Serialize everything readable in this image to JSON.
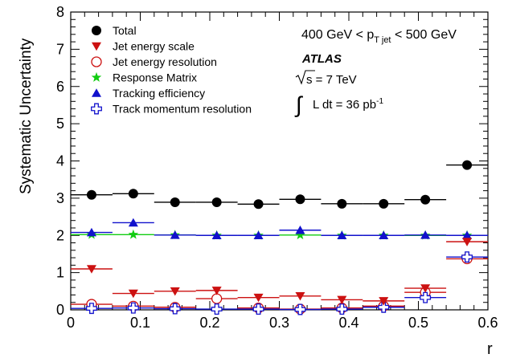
{
  "chart_data": {
    "type": "scatter",
    "xlabel": "r",
    "ylabel": "Systematic Uncertainty",
    "xlim": [
      0,
      0.6
    ],
    "ylim": [
      0,
      8
    ],
    "x_ticks": [
      "0",
      "0.1",
      "0.2",
      "0.3",
      "0.4",
      "0.5",
      "0.6"
    ],
    "y_ticks": [
      "0",
      "1",
      "2",
      "3",
      "4",
      "5",
      "6",
      "7",
      "8"
    ],
    "bin_edges": [
      0,
      0.06,
      0.12,
      0.18,
      0.24,
      0.3,
      0.36,
      0.42,
      0.48,
      0.54,
      0.6
    ],
    "x": [
      0.03,
      0.09,
      0.15,
      0.21,
      0.27,
      0.33,
      0.39,
      0.45,
      0.51,
      0.57
    ],
    "series": [
      {
        "name": "Total",
        "marker": "filled-circle",
        "color": "#000000",
        "values": [
          3.09,
          3.12,
          2.89,
          2.89,
          2.84,
          2.97,
          2.85,
          2.85,
          2.96,
          3.89
        ]
      },
      {
        "name": "Jet energy scale",
        "marker": "filled-triangle-down",
        "color": "#cc1111",
        "values": [
          1.1,
          0.44,
          0.5,
          0.52,
          0.33,
          0.37,
          0.27,
          0.24,
          0.58,
          1.83
        ]
      },
      {
        "name": "Jet energy resolution",
        "marker": "open-circle",
        "color": "#cc1111",
        "values": [
          0.15,
          0.1,
          0.07,
          0.3,
          0.05,
          0.02,
          0.05,
          0.1,
          0.47,
          1.37
        ]
      },
      {
        "name": "Response Matrix",
        "marker": "filled-star",
        "color": "#11cc11",
        "values": [
          2.02,
          2.02,
          2.01,
          2.0,
          2.0,
          2.01,
          2.0,
          2.0,
          2.0,
          2.0
        ]
      },
      {
        "name": "Tracking efficiency",
        "marker": "filled-triangle-up",
        "color": "#1111cc",
        "values": [
          2.08,
          2.34,
          2.01,
          2.0,
          2.0,
          2.14,
          2.0,
          2.0,
          2.01,
          2.0
        ]
      },
      {
        "name": "Track momentum resolution",
        "marker": "open-cross",
        "color": "#1111cc",
        "values": [
          0.04,
          0.05,
          0.03,
          0.02,
          0.02,
          0.01,
          0.02,
          0.07,
          0.33,
          1.42
        ]
      }
    ],
    "annotations": {
      "range_prefix": "400 GeV < p",
      "range_sub": "T jet",
      "range_suffix": " < 500 GeV",
      "experiment": "ATLAS",
      "sqrt_s": "s = 7 TeV",
      "lumi_integral": "∫",
      "lumi_text": "L dt = 36 pb",
      "lumi_sup": "-1"
    },
    "legend_placement": "top-left",
    "grid": false
  }
}
